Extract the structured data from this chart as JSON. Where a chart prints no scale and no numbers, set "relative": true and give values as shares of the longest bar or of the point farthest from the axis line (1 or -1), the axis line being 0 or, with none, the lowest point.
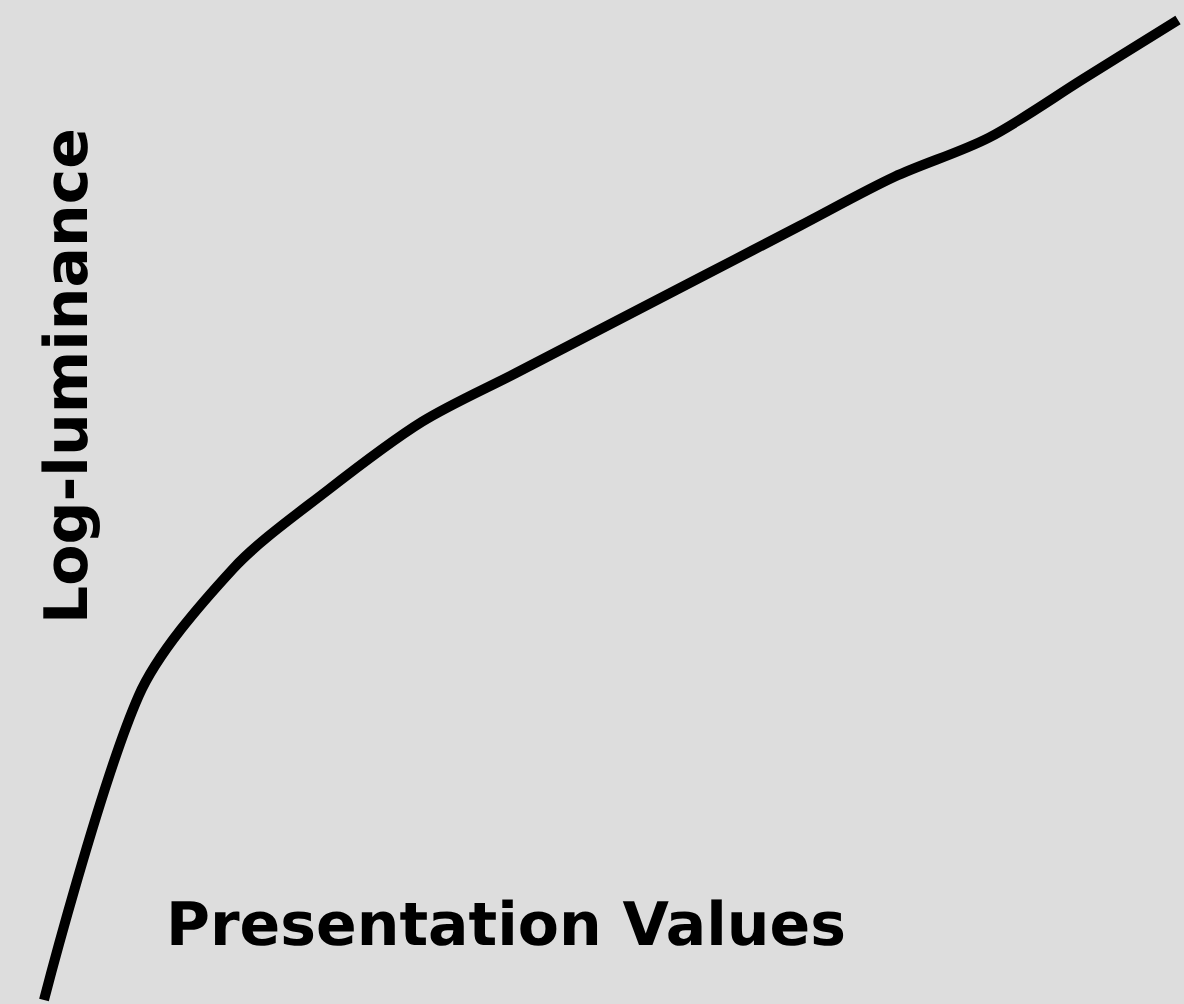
{
  "chart_data": {
    "type": "line",
    "relative": true,
    "xlabel": "Presentation Values",
    "ylabel": "Log-luminance",
    "categories": [
      null,
      null,
      null,
      null,
      null,
      null,
      null,
      null,
      null,
      null,
      null,
      null,
      null
    ],
    "values": [
      0,
      0.31,
      0.44,
      0.52,
      0.59,
      0.64,
      0.69,
      0.74,
      0.79,
      0.84,
      0.88,
      0.94,
      1
    ],
    "color": "#000000",
    "marker": "none",
    "grid": false
  }
}
